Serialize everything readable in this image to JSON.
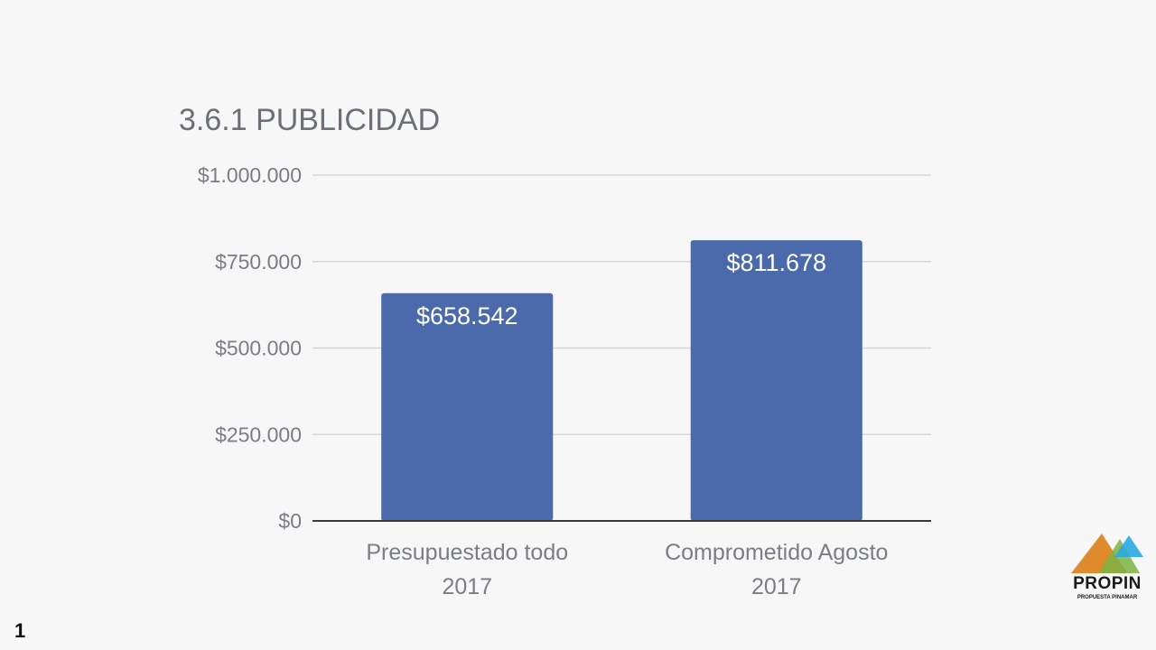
{
  "slide": {
    "page_number": "1"
  },
  "logo": {
    "name": "PROPIN",
    "tagline": "PROPUESTA PINAMAR",
    "icon": "mountains-icon",
    "colors": [
      "#e08a2e",
      "#7cb342",
      "#29a8e0"
    ]
  },
  "chart_data": {
    "type": "bar",
    "title": "3.6.1 PUBLICIDAD",
    "categories": [
      [
        "Presupuestado todo",
        "2017"
      ],
      [
        "Comprometido Agosto",
        "2017"
      ]
    ],
    "values": [
      658542,
      811678
    ],
    "data_labels": [
      "$658.542",
      "$811.678"
    ],
    "ylim": [
      0,
      1000000
    ],
    "yticks": [
      0,
      250000,
      500000,
      750000,
      1000000
    ],
    "ytick_labels": [
      "$0",
      "$250.000",
      "$500.000",
      "$750.000",
      "$1.000.000"
    ],
    "xlabel": "",
    "ylabel": "",
    "grid": true,
    "legend": "none",
    "bar_color": "#4a6aab"
  }
}
